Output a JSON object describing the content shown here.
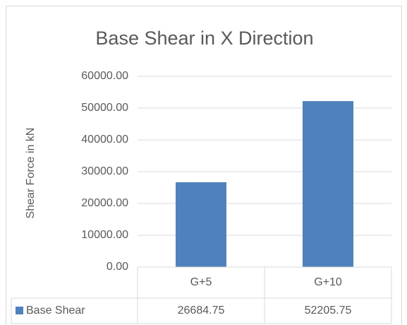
{
  "chart_data": {
    "type": "bar",
    "title": "Base Shear in X Direction",
    "y_label": "Shear Force in kN",
    "categories": [
      "G+5",
      "G+10"
    ],
    "series": [
      {
        "name": "Base Shear",
        "color": "#4f81bd",
        "values": [
          26684.75,
          52205.75
        ]
      }
    ],
    "ylim": [
      0,
      60000
    ],
    "yticks": [
      {
        "value": 0,
        "label": "0.00"
      },
      {
        "value": 10000,
        "label": "10000.00"
      },
      {
        "value": 20000,
        "label": "20000.00"
      },
      {
        "value": 30000,
        "label": "30000.00"
      },
      {
        "value": 40000,
        "label": "40000.00"
      },
      {
        "value": 50000,
        "label": "50000.00"
      },
      {
        "value": 60000,
        "label": "60000.00"
      }
    ],
    "grid": true,
    "data_table": true
  }
}
